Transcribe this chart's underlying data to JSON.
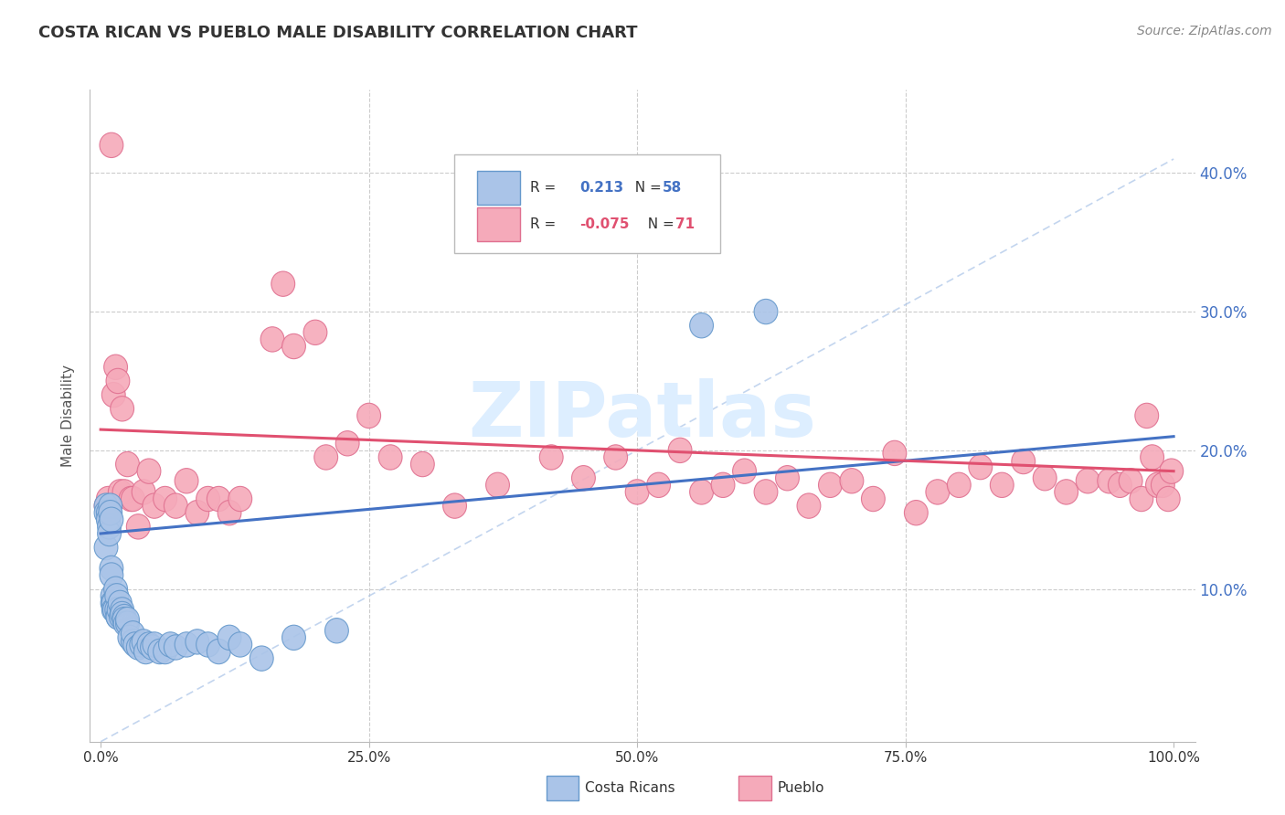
{
  "title": "COSTA RICAN VS PUEBLO MALE DISABILITY CORRELATION CHART",
  "source_text": "Source: ZipAtlas.com",
  "ylabel": "Male Disability",
  "xlim": [
    -0.01,
    1.02
  ],
  "ylim": [
    -0.01,
    0.46
  ],
  "x_ticks": [
    0.0,
    0.25,
    0.5,
    0.75,
    1.0
  ],
  "x_tick_labels": [
    "0.0%",
    "25.0%",
    "50.0%",
    "75.0%",
    "100.0%"
  ],
  "y_ticks": [
    0.1,
    0.2,
    0.3,
    0.4
  ],
  "y_tick_labels": [
    "10.0%",
    "20.0%",
    "30.0%",
    "40.0%"
  ],
  "grid_color": "#cccccc",
  "background_color": "#ffffff",
  "costa_rican_color": "#aac4e8",
  "pueblo_color": "#f5aaba",
  "costa_rican_edge": "#6699cc",
  "pueblo_edge": "#e07090",
  "blue_line_color": "#4472c4",
  "pink_line_color": "#e05070",
  "diag_line_color": "#aac4e8",
  "R_costa": 0.213,
  "N_costa": 58,
  "R_pueblo": -0.075,
  "N_pueblo": 71,
  "costa_rican_x": [
    0.005,
    0.005,
    0.005,
    0.007,
    0.007,
    0.008,
    0.008,
    0.009,
    0.009,
    0.01,
    0.01,
    0.01,
    0.011,
    0.011,
    0.012,
    0.012,
    0.013,
    0.014,
    0.015,
    0.015,
    0.016,
    0.016,
    0.017,
    0.018,
    0.019,
    0.02,
    0.02,
    0.022,
    0.022,
    0.023,
    0.025,
    0.025,
    0.027,
    0.03,
    0.03,
    0.032,
    0.035,
    0.038,
    0.04,
    0.042,
    0.045,
    0.048,
    0.05,
    0.055,
    0.06,
    0.065,
    0.07,
    0.08,
    0.09,
    0.1,
    0.11,
    0.12,
    0.13,
    0.15,
    0.18,
    0.22,
    0.56,
    0.62
  ],
  "costa_rican_y": [
    0.16,
    0.155,
    0.13,
    0.155,
    0.15,
    0.145,
    0.14,
    0.16,
    0.155,
    0.15,
    0.115,
    0.11,
    0.095,
    0.09,
    0.09,
    0.085,
    0.085,
    0.1,
    0.095,
    0.085,
    0.08,
    0.08,
    0.085,
    0.09,
    0.08,
    0.085,
    0.082,
    0.08,
    0.078,
    0.075,
    0.075,
    0.078,
    0.065,
    0.062,
    0.068,
    0.06,
    0.058,
    0.06,
    0.062,
    0.055,
    0.06,
    0.058,
    0.06,
    0.055,
    0.055,
    0.06,
    0.058,
    0.06,
    0.062,
    0.06,
    0.055,
    0.065,
    0.06,
    0.05,
    0.065,
    0.07,
    0.29,
    0.3
  ],
  "pueblo_x": [
    0.005,
    0.007,
    0.008,
    0.01,
    0.012,
    0.014,
    0.016,
    0.018,
    0.02,
    0.022,
    0.025,
    0.028,
    0.03,
    0.035,
    0.04,
    0.045,
    0.05,
    0.06,
    0.07,
    0.08,
    0.09,
    0.1,
    0.11,
    0.12,
    0.13,
    0.16,
    0.17,
    0.18,
    0.2,
    0.21,
    0.23,
    0.25,
    0.27,
    0.3,
    0.33,
    0.37,
    0.42,
    0.45,
    0.48,
    0.5,
    0.52,
    0.54,
    0.56,
    0.58,
    0.6,
    0.62,
    0.64,
    0.66,
    0.68,
    0.7,
    0.72,
    0.74,
    0.76,
    0.78,
    0.8,
    0.82,
    0.84,
    0.86,
    0.88,
    0.9,
    0.92,
    0.94,
    0.95,
    0.96,
    0.97,
    0.975,
    0.98,
    0.985,
    0.99,
    0.995,
    0.998
  ],
  "pueblo_y": [
    0.16,
    0.165,
    0.155,
    0.42,
    0.24,
    0.26,
    0.25,
    0.17,
    0.23,
    0.17,
    0.19,
    0.165,
    0.165,
    0.145,
    0.17,
    0.185,
    0.16,
    0.165,
    0.16,
    0.178,
    0.155,
    0.165,
    0.165,
    0.155,
    0.165,
    0.28,
    0.32,
    0.275,
    0.285,
    0.195,
    0.205,
    0.225,
    0.195,
    0.19,
    0.16,
    0.175,
    0.195,
    0.18,
    0.195,
    0.17,
    0.175,
    0.2,
    0.17,
    0.175,
    0.185,
    0.17,
    0.18,
    0.16,
    0.175,
    0.178,
    0.165,
    0.198,
    0.155,
    0.17,
    0.175,
    0.188,
    0.175,
    0.192,
    0.18,
    0.17,
    0.178,
    0.178,
    0.175,
    0.178,
    0.165,
    0.225,
    0.195,
    0.175,
    0.175,
    0.165,
    0.185
  ]
}
